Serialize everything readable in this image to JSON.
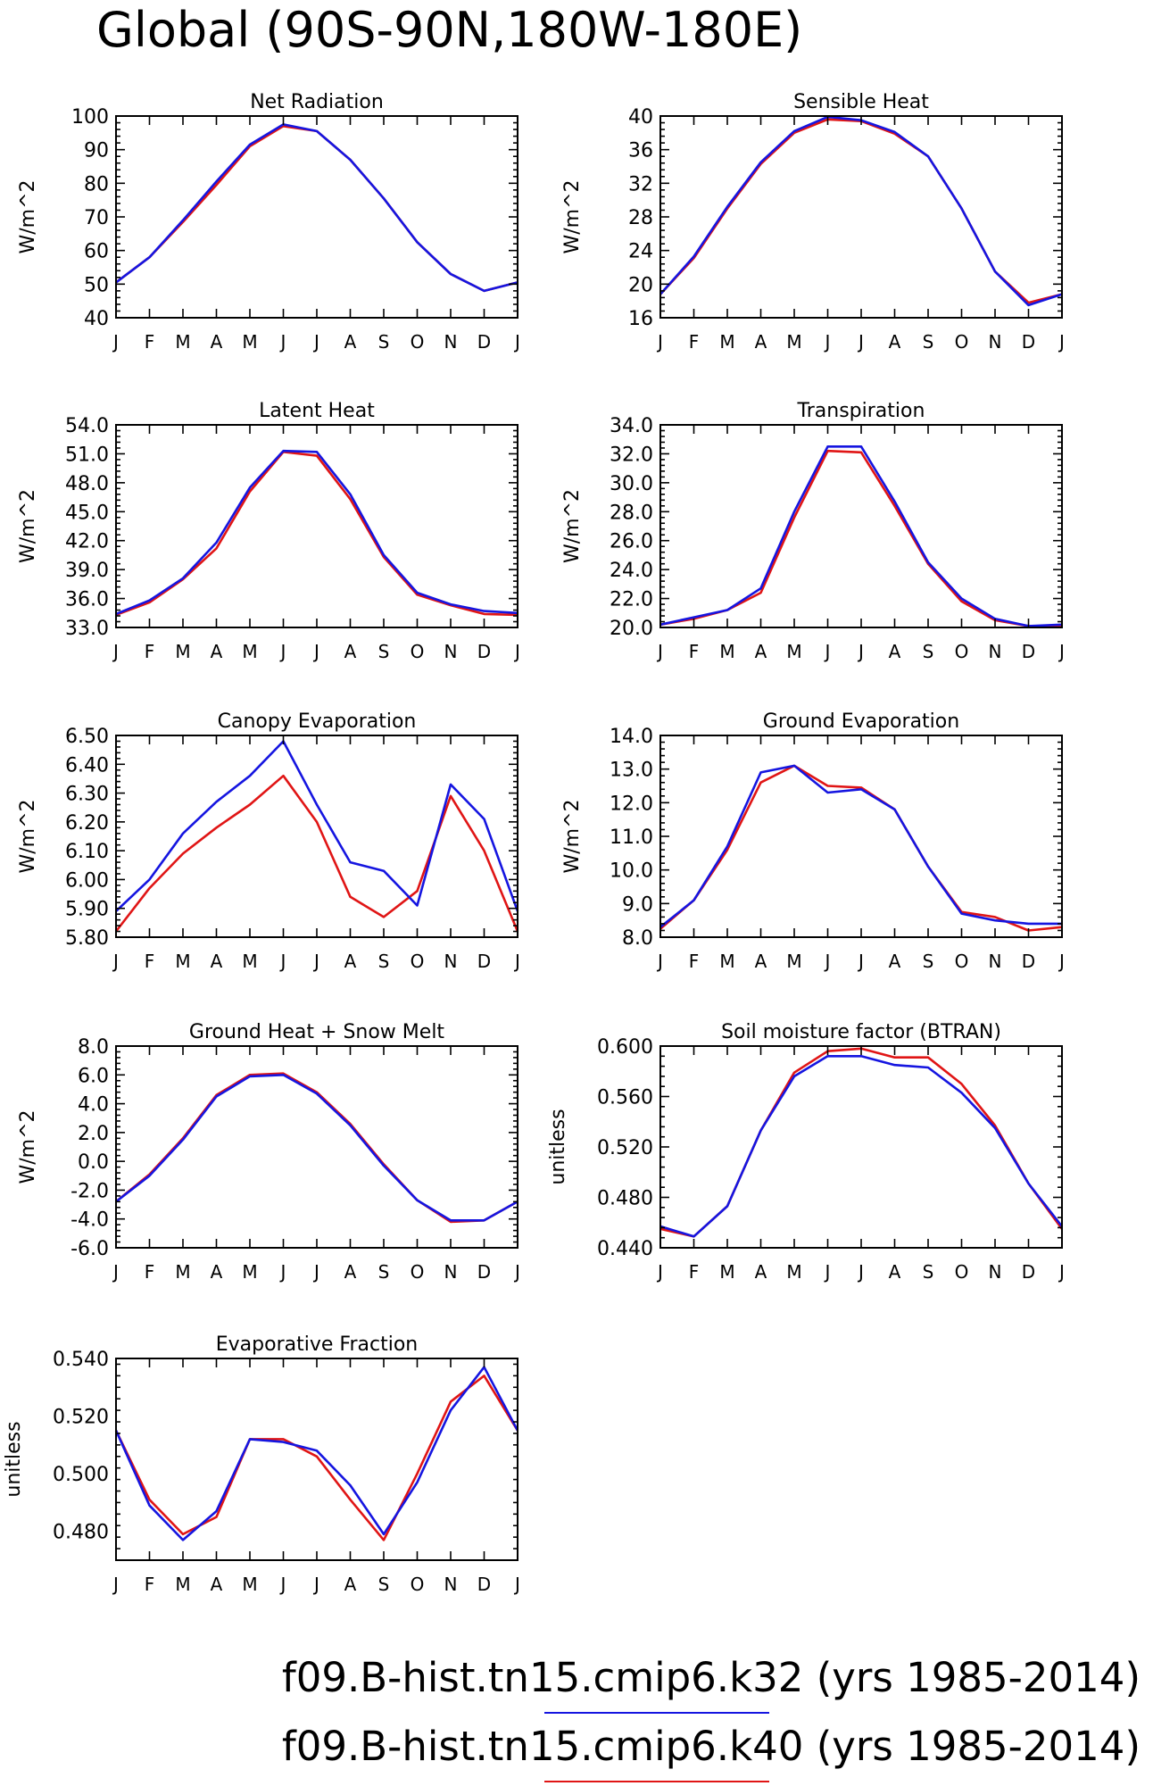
{
  "figure": {
    "title": "Global (90S-90N,180W-180E)",
    "months": [
      "J",
      "F",
      "M",
      "A",
      "M",
      "J",
      "J",
      "A",
      "S",
      "O",
      "N",
      "D",
      "J"
    ],
    "series_colors": {
      "k32": "#1515e0",
      "k40": "#e01515"
    },
    "legend": [
      {
        "text": "f09.B-hist.tn15.cmip6.k32 (yrs 1985-2014)",
        "color": "#1515e0"
      },
      {
        "text": "f09.B-hist.tn15.cmip6.k40 (yrs 1985-2014)",
        "color": "#e01515"
      }
    ]
  },
  "chart_data": [
    {
      "type": "line",
      "title": "Net Radiation",
      "ylabel": "W/m^2",
      "x": [
        "J",
        "F",
        "M",
        "A",
        "M",
        "J",
        "J",
        "A",
        "S",
        "O",
        "N",
        "D",
        "J"
      ],
      "ylim": [
        40,
        100
      ],
      "yticks": [
        "40",
        "50",
        "60",
        "70",
        "80",
        "90",
        "100"
      ],
      "series": [
        {
          "values": [
            50.5,
            58,
            69,
            80.5,
            91.5,
            97.5,
            95.5,
            87,
            75.5,
            62.5,
            53,
            48,
            50.5
          ],
          "color": "#1515e0"
        },
        {
          "values": [
            50.5,
            58,
            68.5,
            79.5,
            91,
            97,
            95.5,
            87,
            75.5,
            62.5,
            53,
            48,
            50.5
          ],
          "color": "#e01515"
        }
      ]
    },
    {
      "type": "line",
      "title": "Sensible Heat",
      "ylabel": "W/m^2",
      "x": [
        "J",
        "F",
        "M",
        "A",
        "M",
        "J",
        "J",
        "A",
        "S",
        "O",
        "N",
        "D",
        "J"
      ],
      "ylim": [
        16,
        40
      ],
      "yticks": [
        "16",
        "20",
        "24",
        "28",
        "32",
        "36",
        "40"
      ],
      "series": [
        {
          "values": [
            18.8,
            23.3,
            29.2,
            34.5,
            38.2,
            39.9,
            39.5,
            38.1,
            35.2,
            29,
            21.5,
            17.5,
            18.8
          ],
          "color": "#1515e0"
        },
        {
          "values": [
            18.8,
            23.1,
            29,
            34.3,
            38,
            39.6,
            39.4,
            37.9,
            35.2,
            29,
            21.5,
            17.8,
            18.8
          ],
          "color": "#e01515"
        }
      ]
    },
    {
      "type": "line",
      "title": "Latent Heat",
      "ylabel": "W/m^2",
      "x": [
        "J",
        "F",
        "M",
        "A",
        "M",
        "J",
        "J",
        "A",
        "S",
        "O",
        "N",
        "D",
        "J"
      ],
      "ylim": [
        33,
        54
      ],
      "yticks": [
        "33.0",
        "36.0",
        "39.0",
        "42.0",
        "45.0",
        "48.0",
        "51.0",
        "54.0"
      ],
      "series": [
        {
          "values": [
            34.4,
            35.8,
            38.1,
            41.8,
            47.5,
            51.3,
            51.2,
            46.8,
            40.5,
            36.6,
            35.4,
            34.7,
            34.5
          ],
          "color": "#1515e0"
        },
        {
          "values": [
            34.3,
            35.6,
            38.0,
            41.2,
            47.1,
            51.2,
            50.8,
            46.3,
            40.3,
            36.4,
            35.3,
            34.4,
            34.3
          ],
          "color": "#e01515"
        }
      ]
    },
    {
      "type": "line",
      "title": "Transpiration",
      "ylabel": "W/m^2",
      "x": [
        "J",
        "F",
        "M",
        "A",
        "M",
        "J",
        "J",
        "A",
        "S",
        "O",
        "N",
        "D",
        "J"
      ],
      "ylim": [
        20,
        34
      ],
      "yticks": [
        "20.0",
        "22.0",
        "24.0",
        "26.0",
        "28.0",
        "30.0",
        "32.0",
        "34.0"
      ],
      "series": [
        {
          "values": [
            20.2,
            20.7,
            21.2,
            22.7,
            28,
            32.5,
            32.5,
            28.7,
            24.5,
            22,
            20.6,
            20.1,
            20.2
          ],
          "color": "#1515e0"
        },
        {
          "values": [
            20.2,
            20.6,
            21.2,
            22.4,
            27.6,
            32.2,
            32.1,
            28.4,
            24.4,
            21.8,
            20.5,
            20.1,
            20.1
          ],
          "color": "#e01515"
        }
      ]
    },
    {
      "type": "line",
      "title": "Canopy Evaporation",
      "ylabel": "W/m^2",
      "x": [
        "J",
        "F",
        "M",
        "A",
        "M",
        "J",
        "J",
        "A",
        "S",
        "O",
        "N",
        "D",
        "J"
      ],
      "ylim": [
        5.8,
        6.5
      ],
      "yticks": [
        "5.80",
        "5.90",
        "6.00",
        "6.10",
        "6.20",
        "6.30",
        "6.40",
        "6.50"
      ],
      "series": [
        {
          "values": [
            5.89,
            6.0,
            6.16,
            6.27,
            6.36,
            6.48,
            6.26,
            6.06,
            6.03,
            5.91,
            6.33,
            6.21,
            5.89
          ],
          "color": "#1515e0"
        },
        {
          "values": [
            5.82,
            5.97,
            6.09,
            6.18,
            6.26,
            6.36,
            6.2,
            5.94,
            5.87,
            5.96,
            6.29,
            6.1,
            5.82
          ],
          "color": "#e01515"
        }
      ]
    },
    {
      "type": "line",
      "title": "Ground Evaporation",
      "ylabel": "W/m^2",
      "x": [
        "J",
        "F",
        "M",
        "A",
        "M",
        "J",
        "J",
        "A",
        "S",
        "O",
        "N",
        "D",
        "J"
      ],
      "ylim": [
        8,
        14
      ],
      "yticks": [
        "8.0",
        "9.0",
        "10.0",
        "11.0",
        "12.0",
        "13.0",
        "14.0"
      ],
      "series": [
        {
          "values": [
            8.3,
            9.1,
            10.7,
            12.9,
            13.1,
            12.3,
            12.4,
            11.8,
            10.1,
            8.7,
            8.5,
            8.4,
            8.4
          ],
          "color": "#1515e0"
        },
        {
          "values": [
            8.25,
            9.1,
            10.6,
            12.6,
            13.1,
            12.5,
            12.45,
            11.8,
            10.1,
            8.75,
            8.6,
            8.2,
            8.3
          ],
          "color": "#e01515"
        }
      ]
    },
    {
      "type": "line",
      "title": "Ground Heat + Snow Melt",
      "ylabel": "W/m^2",
      "x": [
        "J",
        "F",
        "M",
        "A",
        "M",
        "J",
        "J",
        "A",
        "S",
        "O",
        "N",
        "D",
        "J"
      ],
      "ylim": [
        -6,
        8
      ],
      "yticks": [
        "-6.0",
        "-4.0",
        "-2.0",
        "0.0",
        "2.0",
        "4.0",
        "6.0",
        "8.0"
      ],
      "series": [
        {
          "values": [
            -2.8,
            -1.0,
            1.5,
            4.5,
            5.9,
            6.0,
            4.7,
            2.5,
            -0.3,
            -2.7,
            -4.1,
            -4.1,
            -2.8
          ],
          "color": "#1515e0"
        },
        {
          "values": [
            -2.8,
            -0.9,
            1.6,
            4.6,
            6.0,
            6.1,
            4.8,
            2.6,
            -0.2,
            -2.7,
            -4.2,
            -4.1,
            -2.8
          ],
          "color": "#e01515"
        }
      ]
    },
    {
      "type": "line",
      "title": "Soil moisture factor (BTRAN)",
      "ylabel": "unitless",
      "x": [
        "J",
        "F",
        "M",
        "A",
        "M",
        "J",
        "J",
        "A",
        "S",
        "O",
        "N",
        "D",
        "J"
      ],
      "ylim": [
        0.44,
        0.6
      ],
      "yticks": [
        "0.440",
        "0.480",
        "0.520",
        "0.560",
        "0.600"
      ],
      "series": [
        {
          "values": [
            0.457,
            0.449,
            0.473,
            0.533,
            0.576,
            0.592,
            0.592,
            0.585,
            0.583,
            0.563,
            0.535,
            0.491,
            0.457
          ],
          "color": "#1515e0"
        },
        {
          "values": [
            0.455,
            0.449,
            0.473,
            0.533,
            0.579,
            0.596,
            0.598,
            0.591,
            0.591,
            0.57,
            0.537,
            0.491,
            0.455
          ],
          "color": "#e01515"
        }
      ]
    },
    {
      "type": "line",
      "title": "Evaporative Fraction",
      "ylabel": "unitless",
      "x": [
        "J",
        "F",
        "M",
        "A",
        "M",
        "J",
        "J",
        "A",
        "S",
        "O",
        "N",
        "D",
        "J"
      ],
      "ylim": [
        0.47,
        0.54
      ],
      "yticks": [
        "0.480",
        "0.500",
        "0.520",
        "0.540"
      ],
      "series": [
        {
          "values": [
            0.515,
            0.489,
            0.477,
            0.487,
            0.512,
            0.511,
            0.508,
            0.496,
            0.479,
            0.497,
            0.522,
            0.537,
            0.515
          ],
          "color": "#1515e0"
        },
        {
          "values": [
            0.515,
            0.491,
            0.479,
            0.485,
            0.512,
            0.512,
            0.506,
            0.491,
            0.477,
            0.5,
            0.525,
            0.534,
            0.515
          ],
          "color": "#e01515"
        }
      ]
    }
  ]
}
